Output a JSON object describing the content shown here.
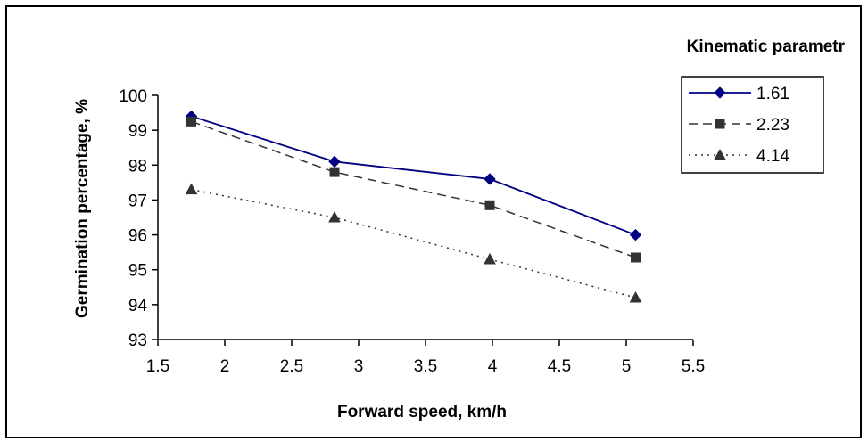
{
  "chart_data": {
    "type": "line",
    "title": "",
    "xlabel": "Forward speed, km/h",
    "ylabel": "Germination percentage, %",
    "xlim": [
      1.5,
      5.5
    ],
    "ylim": [
      93,
      100
    ],
    "xticks": [
      "1.5",
      "2",
      "2.5",
      "3",
      "3.5",
      "4",
      "4.5",
      "5",
      "5.5"
    ],
    "yticks": [
      "93",
      "94",
      "95",
      "96",
      "97",
      "98",
      "99",
      "100"
    ],
    "grid": false,
    "legend": {
      "title": "Kinematic parametr",
      "placement": "top-right"
    },
    "series": [
      {
        "name": "1.61",
        "color": "#000080",
        "line": "solid",
        "marker": "diamond",
        "x": [
          1.75,
          2.82,
          3.98,
          5.07
        ],
        "y": [
          99.4,
          98.1,
          97.6,
          96.0
        ]
      },
      {
        "name": "2.23",
        "color": "#333333",
        "line": "dashed",
        "marker": "square",
        "x": [
          1.75,
          2.82,
          3.98,
          5.07
        ],
        "y": [
          99.25,
          97.8,
          96.85,
          95.35
        ]
      },
      {
        "name": "4.14",
        "color": "#333333",
        "line": "dotted",
        "marker": "triangle",
        "x": [
          1.75,
          2.82,
          3.98,
          5.07
        ],
        "y": [
          97.3,
          96.5,
          95.3,
          94.2
        ]
      }
    ]
  }
}
